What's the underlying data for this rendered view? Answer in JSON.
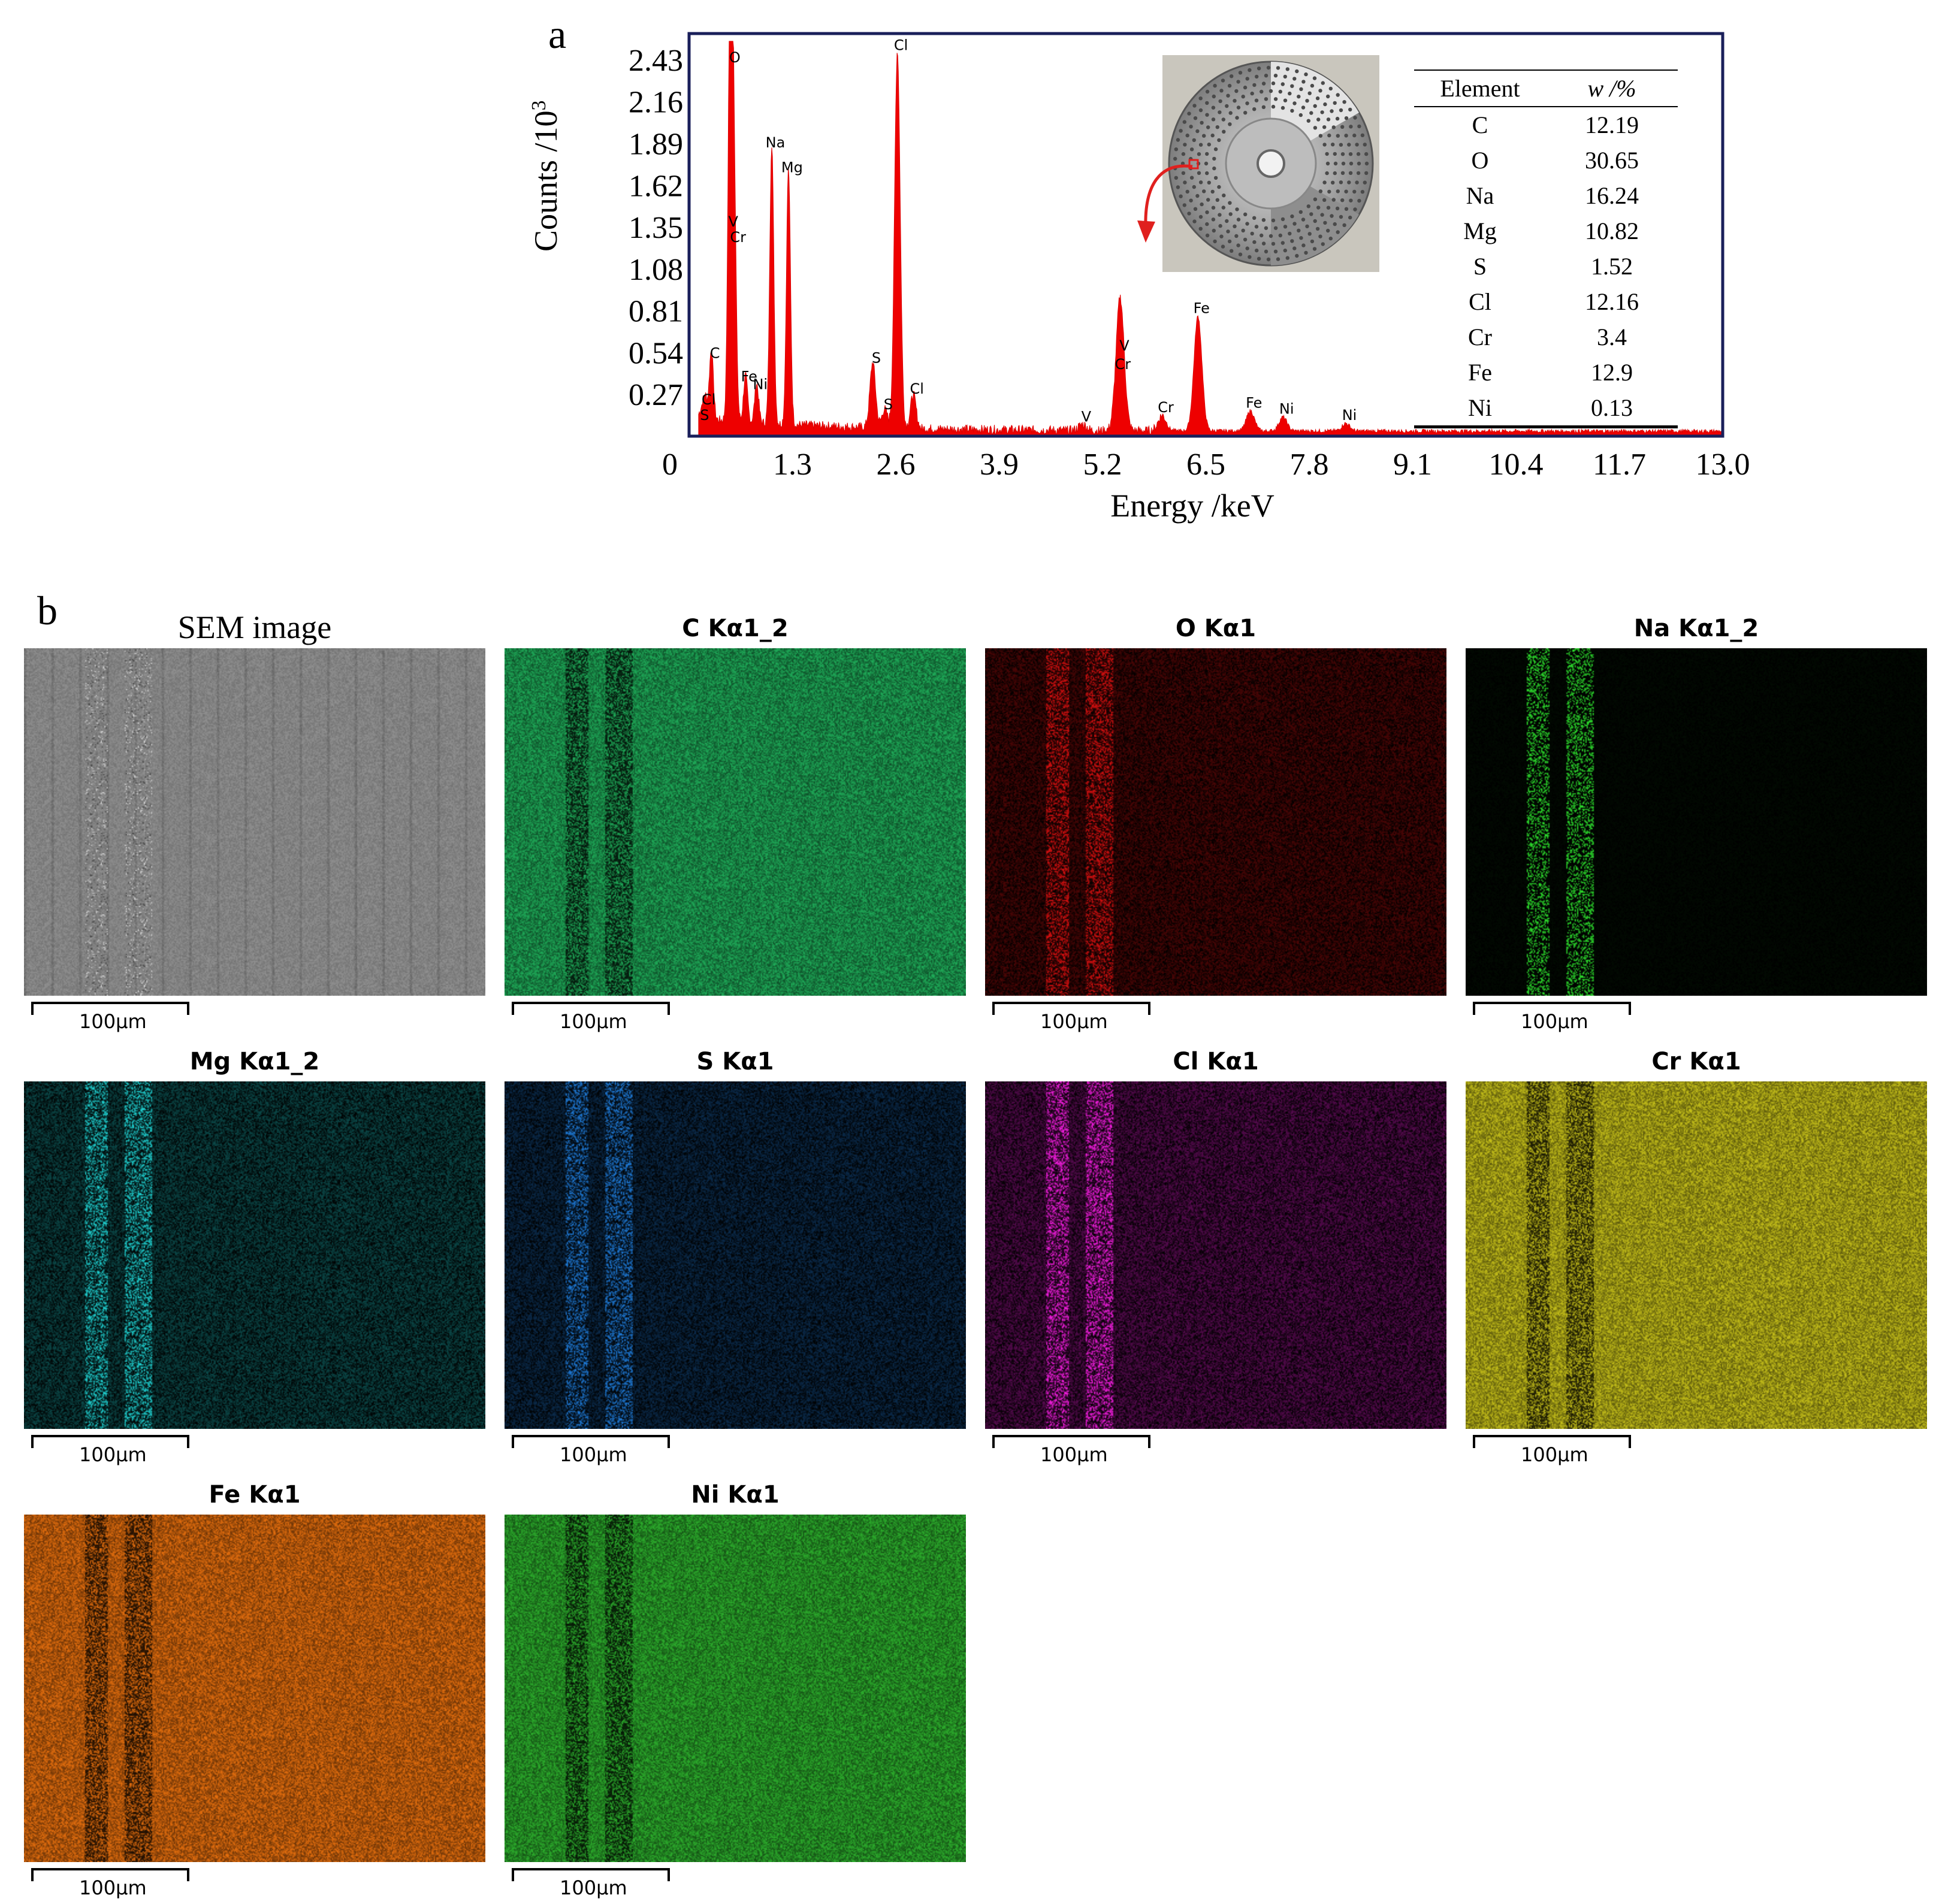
{
  "panel_a": {
    "letter": "a",
    "ylabel_main": "Counts /10",
    "ylabel_sup": "3",
    "xlabel": "Energy /keV",
    "table": {
      "header": [
        "Element",
        "w /%"
      ],
      "rows": [
        [
          "C",
          "12.19"
        ],
        [
          "O",
          "30.65"
        ],
        [
          "Na",
          "16.24"
        ],
        [
          "Mg",
          "10.82"
        ],
        [
          "S",
          "1.52"
        ],
        [
          "Cl",
          "12.16"
        ],
        [
          "Cr",
          "3.4"
        ],
        [
          "Fe",
          "12.9"
        ],
        [
          "Ni",
          "0.13"
        ]
      ]
    },
    "inset_photo": "perforated-disc-photo",
    "arrow_color": "#e0201e"
  },
  "chart_data": {
    "type": "area",
    "color": "#ee0000",
    "xlim": [
      0,
      13.0
    ],
    "ylim": [
      0,
      2.6
    ],
    "xticks": [
      "0",
      "1.3",
      "2.6",
      "3.9",
      "5.2",
      "6.5",
      "7.8",
      "9.1",
      "10.4",
      "11.7",
      "13.0"
    ],
    "yticks": [
      "0.27",
      "0.54",
      "0.81",
      "1.08",
      "1.35",
      "1.62",
      "1.89",
      "2.16",
      "2.43"
    ],
    "peaks": [
      {
        "label": "S",
        "x": 0.15,
        "y": 0.05
      },
      {
        "label": "Cl",
        "x": 0.2,
        "y": 0.15
      },
      {
        "label": "C",
        "x": 0.28,
        "y": 0.45
      },
      {
        "label": "O",
        "x": 0.53,
        "y": 2.36
      },
      {
        "label": "V",
        "x": 0.51,
        "y": 1.3
      },
      {
        "label": "Cr",
        "x": 0.57,
        "y": 1.2
      },
      {
        "label": "Fe",
        "x": 0.71,
        "y": 0.3
      },
      {
        "label": "Ni",
        "x": 0.85,
        "y": 0.25
      },
      {
        "label": "Na",
        "x": 1.04,
        "y": 1.81
      },
      {
        "label": "Mg",
        "x": 1.25,
        "y": 1.65
      },
      {
        "label": "S",
        "x": 2.31,
        "y": 0.42
      },
      {
        "label": "S",
        "x": 2.46,
        "y": 0.12
      },
      {
        "label": "Cl",
        "x": 2.62,
        "y": 2.44
      },
      {
        "label": "Cl",
        "x": 2.82,
        "y": 0.22
      },
      {
        "label": "V",
        "x": 4.95,
        "y": 0.04
      },
      {
        "label": "Cr",
        "x": 5.41,
        "y": 0.38
      },
      {
        "label": "V",
        "x": 5.43,
        "y": 0.5
      },
      {
        "label": "Cr",
        "x": 5.95,
        "y": 0.1
      },
      {
        "label": "Fe",
        "x": 6.4,
        "y": 0.74
      },
      {
        "label": "Fe",
        "x": 7.06,
        "y": 0.13
      },
      {
        "label": "Ni",
        "x": 7.47,
        "y": 0.09
      },
      {
        "label": "Ni",
        "x": 8.26,
        "y": 0.05
      }
    ]
  },
  "panel_b": {
    "letter": "b",
    "scale_label": "100μm",
    "maps": [
      {
        "title": "SEM image",
        "color": "#8a8a8a"
      },
      {
        "title": "C Kα1_2",
        "color": "#1fae5a"
      },
      {
        "title": "O Kα1",
        "color": "#e01010"
      },
      {
        "title": "Na Kα1_2",
        "color": "#2ee62e"
      },
      {
        "title": "Mg Kα1_2",
        "color": "#20d8d8"
      },
      {
        "title": "S Kα1",
        "color": "#1f7fe0"
      },
      {
        "title": "Cl Kα1",
        "color": "#ff1eea"
      },
      {
        "title": "Cr Kα1",
        "color": "#c8c21a"
      },
      {
        "title": "Fe Kα1",
        "color": "#e8700e"
      },
      {
        "title": "Ni Kα1",
        "color": "#2db12d"
      }
    ]
  }
}
